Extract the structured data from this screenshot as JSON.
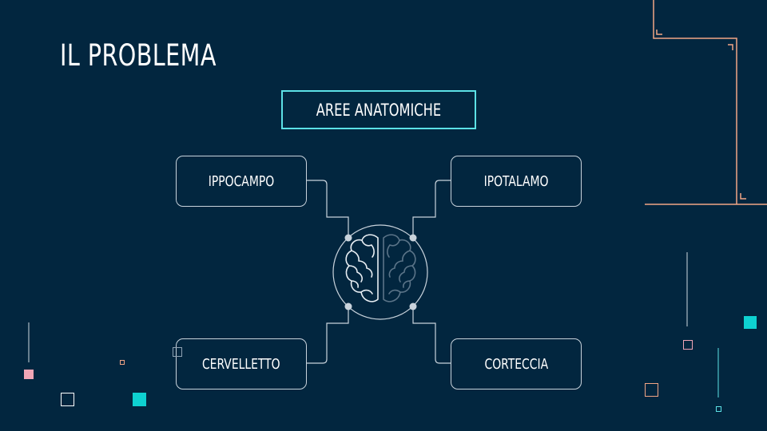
{
  "title": "IL PROBLEMA",
  "diagram": {
    "header": "AREE ANATOMICHE",
    "nodes": {
      "top_left": "IPPOCAMPO",
      "top_right": "IPOTALAMO",
      "bottom_left": "CERVELLETTO",
      "bottom_right": "CORTECCIA"
    },
    "center_icon": "brain-icon"
  },
  "colors": {
    "background": "#02263f",
    "accent_cyan": "#5ce1e6",
    "accent_orange": "#f2a585",
    "accent_pink": "#f0a6b6",
    "connector": "#c9d3dc"
  }
}
